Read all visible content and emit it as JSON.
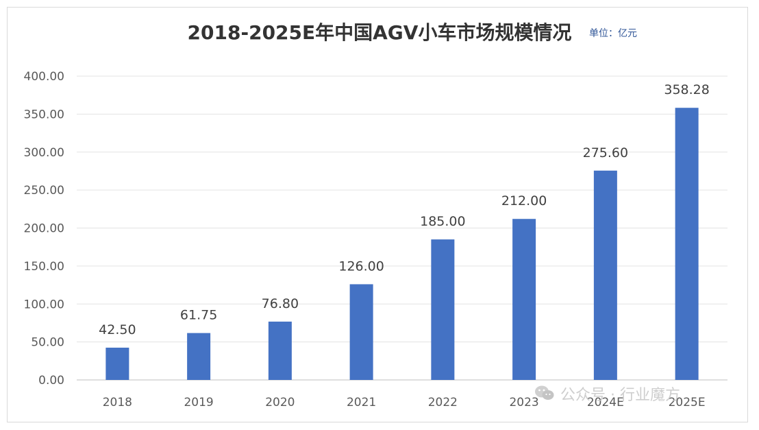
{
  "chart_data": {
    "type": "bar",
    "title": "2018-2025E年中国AGV小车市场规模情况",
    "unit_label": "单位：亿元",
    "categories": [
      "2018",
      "2019",
      "2020",
      "2021",
      "2022",
      "2023",
      "2024E",
      "2025E"
    ],
    "values": [
      42.5,
      61.75,
      76.8,
      126.0,
      185.0,
      212.0,
      275.6,
      358.28
    ],
    "value_labels": [
      "42.50",
      "61.75",
      "76.80",
      "126.00",
      "185.00",
      "212.00",
      "275.60",
      "358.28"
    ],
    "yticks": [
      "0.00",
      "50.00",
      "100.00",
      "150.00",
      "200.00",
      "250.00",
      "300.00",
      "350.00",
      "400.00"
    ],
    "ylim": [
      0,
      400
    ],
    "grid": true,
    "bar_color": "#4472c4",
    "xlabel": "",
    "ylabel": ""
  },
  "watermark": {
    "text": "公众号 · 行业魔方",
    "icon": "wechat-icon"
  }
}
